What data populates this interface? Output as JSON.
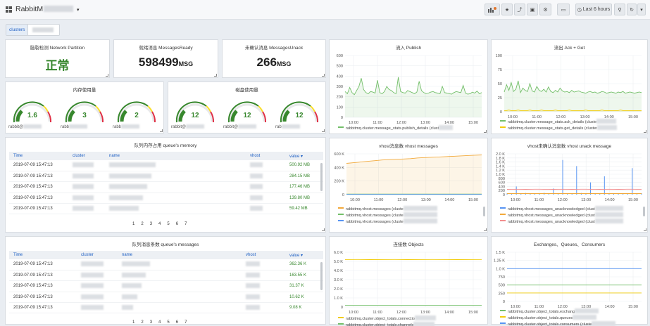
{
  "topbar": {
    "title": "RabbitM",
    "time_range": "Last 6 hours"
  },
  "variables": {
    "label": "clusters"
  },
  "stats": [
    {
      "title": "脑裂检测 Network Partition",
      "value": "正常",
      "unit": "",
      "color": "#37872d"
    },
    {
      "title": "就绪消息 MessagesReady",
      "value": "598499",
      "unit": "MSG",
      "color": "#222222"
    },
    {
      "title": "未确认消息 MessagesUnack",
      "value": "266",
      "unit": "MSG",
      "color": "#222222"
    }
  ],
  "memory": {
    "title": "内存使用量",
    "gauges": [
      {
        "value": "1.6",
        "label": "rabbit@"
      },
      {
        "value": "3",
        "label": "rabb"
      },
      {
        "value": "2",
        "label": "rabb"
      }
    ]
  },
  "disk": {
    "title": "磁盘使用量",
    "gauges": [
      {
        "value": "12",
        "label": "rabbit@"
      },
      {
        "value": "12",
        "label": "rabbit@"
      },
      {
        "value": "12",
        "label": "rab"
      }
    ]
  },
  "table1": {
    "title": "队列内存占用 queue's memory",
    "columns": [
      "Time",
      "cluster",
      "name",
      "vhost",
      "value ▾"
    ],
    "rows": [
      {
        "time": "2019-07-09 15:47:13",
        "value": "500.92 MB"
      },
      {
        "time": "2019-07-09 15:47:13",
        "value": "284.15 MB"
      },
      {
        "time": "2019-07-09 15:47:13",
        "value": "177.46 MB"
      },
      {
        "time": "2019-07-09 15:47:13",
        "value": "139.80 MB"
      },
      {
        "time": "2019-07-09 15:47:13",
        "value": "59.42 MB"
      }
    ],
    "pages": [
      "1",
      "2",
      "3",
      "4",
      "5",
      "6",
      "7"
    ]
  },
  "table2": {
    "title": "队列消息条数 queue's messages",
    "columns": [
      "Time",
      "cluster",
      "name",
      "vhost",
      "value ▾"
    ],
    "rows": [
      {
        "time": "2019-07-09 15:47:13",
        "value": "362.36 K"
      },
      {
        "time": "2019-07-09 15:47:13",
        "value": "163.55 K"
      },
      {
        "time": "2019-07-09 15:47:13",
        "value": "31.37 K"
      },
      {
        "time": "2019-07-09 15:47:13",
        "value": "10.62 K"
      },
      {
        "time": "2019-07-09 15:47:13",
        "value": "9.08 K"
      }
    ],
    "pages": [
      "1",
      "2",
      "3",
      "4",
      "5",
      "6",
      "7"
    ]
  },
  "chart_data": [
    {
      "type": "line",
      "title": "流入 Publish",
      "x_ticks": [
        "10:00",
        "11:00",
        "12:00",
        "13:00",
        "14:00",
        "15:00"
      ],
      "y_ticks": [
        "0",
        "100",
        "200",
        "300",
        "400",
        "500",
        "600"
      ],
      "ylim": [
        0,
        600
      ],
      "series": [
        {
          "name": "rabbitmq.cluster.message_stats.publish_details (clust",
          "color": "#73bf69",
          "values": [
            250,
            230,
            290,
            240,
            220,
            260,
            300,
            380,
            270,
            240,
            230,
            250,
            245,
            235,
            360,
            240,
            230,
            250,
            300,
            270,
            260,
            240,
            230,
            390,
            250,
            240,
            235,
            260,
            250,
            240,
            230,
            245,
            350,
            260,
            240,
            230,
            235,
            245,
            250,
            240,
            235,
            230,
            300,
            240,
            235,
            230,
            225,
            240,
            250,
            245,
            240,
            310,
            235,
            225,
            230,
            245,
            235,
            255,
            230,
            240
          ]
        }
      ]
    },
    {
      "type": "line",
      "title": "流出 Ack + Get",
      "x_ticks": [
        "10:00",
        "11:00",
        "12:00",
        "13:00",
        "14:00",
        "15:00"
      ],
      "y_ticks": [
        "0",
        "25",
        "50",
        "75",
        "100"
      ],
      "ylim": [
        0,
        100
      ],
      "series": [
        {
          "name": "rabbitmq.cluster.message_stats.ack_details (cluste",
          "color": "#73bf69",
          "values": [
            35,
            48,
            38,
            52,
            36,
            40,
            55,
            34,
            42,
            38,
            36,
            50,
            37,
            35,
            45,
            38,
            36,
            40,
            35,
            44,
            36,
            34,
            38,
            35,
            42,
            37,
            35,
            36,
            34,
            38,
            35,
            36,
            37,
            35,
            34,
            33,
            35,
            36,
            34,
            35,
            33,
            34,
            36,
            35,
            33,
            34,
            35,
            34,
            33,
            35,
            34,
            36,
            33,
            34,
            35,
            34,
            33,
            34,
            35,
            34
          ]
        },
        {
          "name": "rabbitmq.cluster.message_stats.get_details (cluster",
          "color": "#f2cc0c",
          "values": [
            2,
            2,
            3,
            2,
            2,
            2,
            3,
            2,
            2,
            2,
            2,
            3,
            2,
            2,
            2,
            2,
            3,
            2,
            2,
            2,
            2,
            2,
            3,
            2,
            2,
            2,
            2,
            2,
            3,
            2,
            2,
            2,
            2,
            2,
            2,
            3,
            2,
            2,
            2,
            2,
            2,
            2,
            3,
            2,
            2,
            2,
            2,
            2,
            2,
            2,
            3,
            2,
            2,
            2,
            2,
            2,
            2,
            2,
            2,
            2
          ]
        }
      ]
    },
    {
      "type": "line",
      "title": "vhost消息数 vhost messages",
      "x_ticks": [
        "10:00",
        "11:00",
        "12:00",
        "13:00",
        "14:00",
        "15:00"
      ],
      "y_ticks": [
        "0",
        "200 K",
        "400 K",
        "600 K"
      ],
      "ylim": [
        0,
        600000
      ],
      "series": [
        {
          "name": "rabbitmq.vhost.messages (cluste",
          "color": "#f2a93b",
          "values": [
            460000,
            470000,
            480000,
            490000,
            500000,
            510000,
            515000,
            520000,
            525000,
            530000,
            540000,
            545000,
            550000,
            555000,
            560000,
            565000,
            570000,
            575000,
            580000,
            585000
          ]
        },
        {
          "name": "rabbitmq.vhost.messages (cluste",
          "color": "#73bf69",
          "values": [
            8000,
            8000,
            8000,
            8000,
            8000,
            8000,
            8000,
            8000,
            8000,
            8000,
            8000,
            8000,
            8000,
            8000,
            8000,
            8000,
            8000,
            8000,
            8000,
            8000
          ]
        },
        {
          "name": "rabbitmq.vhost.messages (cluste",
          "color": "#5794f2",
          "values": [
            3000,
            3000,
            3000,
            3000,
            3000,
            3000,
            3000,
            3000,
            3000,
            3000,
            3000,
            3000,
            3000,
            3000,
            3000,
            3000,
            3000,
            3000,
            3000,
            3000
          ]
        }
      ]
    },
    {
      "type": "line",
      "title": "vhost未确认消息数 vhost unack message",
      "x_ticks": [
        "10:00",
        "11:00",
        "12:00",
        "13:00",
        "14:00",
        "15:00"
      ],
      "y_ticks": [
        "0",
        "200",
        "400",
        "600",
        "800",
        "1.0 K",
        "1.2 K",
        "1.4 K",
        "1.6 K",
        "1.8 K",
        "2.0 K"
      ],
      "ylim": [
        0,
        2000
      ],
      "series": [
        {
          "name": "rabbitmq.vhost.messages_unacknowledged (clust",
          "color": "#5794f2",
          "values": [
            60,
            70,
            400,
            60,
            80,
            65,
            60,
            70,
            90,
            60,
            300,
            65,
            1700,
            60,
            70,
            1400,
            80,
            60,
            600,
            70,
            65,
            900,
            60,
            70,
            60,
            65,
            70,
            1300,
            60,
            70
          ]
        },
        {
          "name": "rabbitmq.vhost.messages_unacknowledged (clust",
          "color": "#f2a93b",
          "values": [
            50,
            50,
            50,
            50,
            50,
            50,
            50,
            50,
            50,
            50,
            50,
            50,
            50,
            50,
            50,
            50,
            50,
            50,
            50,
            50,
            50,
            50,
            50,
            50,
            50,
            50,
            50,
            50,
            50,
            50
          ]
        },
        {
          "name": "rabbitmq.vhost.messages_unacknowledged (clust",
          "color": "#f28e8e",
          "values": [
            260,
            262,
            265,
            263,
            260,
            262,
            264,
            266,
            263,
            262,
            260,
            262,
            265,
            263,
            260,
            262,
            264,
            266,
            263,
            262,
            260,
            262,
            265,
            263,
            260,
            262,
            264,
            266,
            263,
            262
          ]
        }
      ]
    },
    {
      "type": "line",
      "title": "连接数 Objects",
      "x_ticks": [
        "10:00",
        "11:00",
        "12:00",
        "13:00",
        "14:00",
        "15:00"
      ],
      "y_ticks": [
        "0",
        "1.0 K",
        "2.0 K",
        "3.0 K",
        "4.0 K",
        "5.0 K",
        "6.0 K"
      ],
      "ylim": [
        0,
        6000
      ],
      "series": [
        {
          "name": "rabbitmq.cluster.object_totals.connectio",
          "color": "#f2cc0c",
          "values": [
            5200,
            5210,
            5190,
            5200,
            5205,
            5195,
            5200,
            5210,
            5200,
            5195,
            5200,
            5205
          ]
        },
        {
          "name": "rabbitmq.cluster.object_totals.channels",
          "color": "#73bf69",
          "values": [
            200,
            200,
            200,
            200,
            200,
            200,
            200,
            200,
            200,
            200,
            200,
            200
          ]
        }
      ]
    },
    {
      "type": "line",
      "title": "Exchanges、Queues、Consumers",
      "x_ticks": [
        "10:00",
        "11:00",
        "12:00",
        "13:00",
        "14:00",
        "15:00"
      ],
      "y_ticks": [
        "0",
        "250",
        "500",
        "750",
        "1.0 K",
        "1.25 K",
        "1.5 K"
      ],
      "ylim": [
        0,
        1500
      ],
      "series": [
        {
          "name": "rabbitmq.cluster.object_totals.exchang",
          "color": "#73bf69",
          "values": [
            500,
            500,
            500,
            500,
            500,
            500,
            500,
            500,
            500,
            500,
            500,
            500
          ]
        },
        {
          "name": "rabbitmq.cluster.object_totals.queues",
          "color": "#f2cc0c",
          "values": [
            260,
            260,
            260,
            260,
            260,
            260,
            260,
            260,
            260,
            260,
            260,
            260
          ]
        },
        {
          "name": "rabbitmq.cluster.object_totals.consumers (cluste",
          "color": "#5794f2",
          "values": [
            1000,
            1000,
            1000,
            1000,
            1000,
            1000,
            1000,
            1000,
            1000,
            1000,
            1000,
            1000
          ]
        }
      ]
    }
  ]
}
